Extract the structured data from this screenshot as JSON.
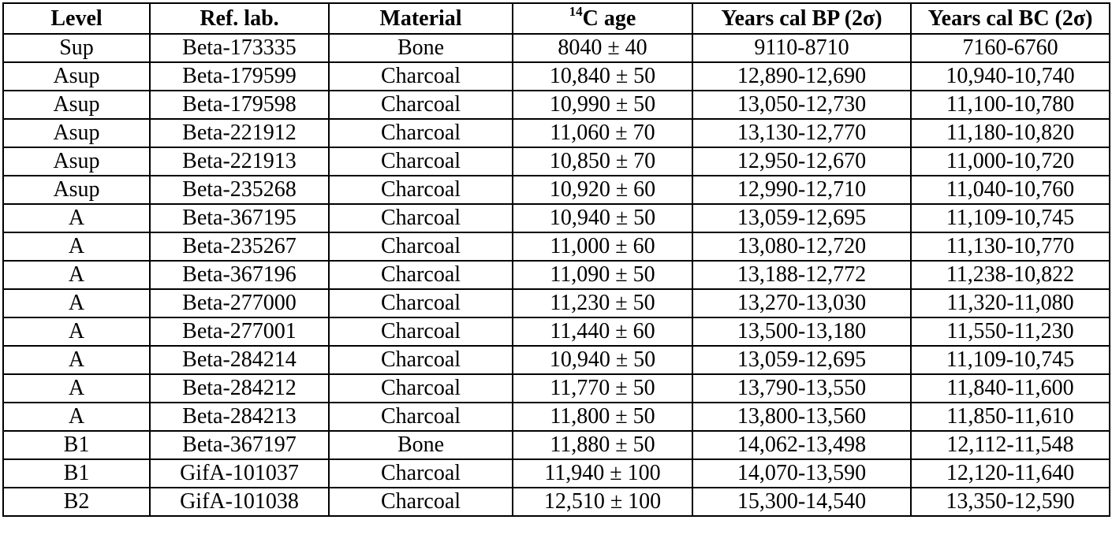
{
  "table": {
    "headers": {
      "level": "Level",
      "ref_lab": "Ref. lab.",
      "material": "Material",
      "age_sup": "14",
      "age_main": "C age",
      "cal_bp": "Years cal BP (2σ)",
      "cal_bc": "Years cal BC (2σ)"
    },
    "rows": [
      [
        "Sup",
        "Beta-173335",
        "Bone",
        "8040 ± 40",
        "9110-8710",
        "7160-6760"
      ],
      [
        "Asup",
        "Beta-179599",
        "Charcoal",
        "10,840 ± 50",
        "12,890-12,690",
        "10,940-10,740"
      ],
      [
        "Asup",
        "Beta-179598",
        "Charcoal",
        "10,990 ± 50",
        "13,050-12,730",
        "11,100-10,780"
      ],
      [
        "Asup",
        "Beta-221912",
        "Charcoal",
        "11,060 ± 70",
        "13,130-12,770",
        "11,180-10,820"
      ],
      [
        "Asup",
        "Beta-221913",
        "Charcoal",
        "10,850 ± 70",
        "12,950-12,670",
        "11,000-10,720"
      ],
      [
        "Asup",
        "Beta-235268",
        "Charcoal",
        "10,920 ± 60",
        "12,990-12,710",
        "11,040-10,760"
      ],
      [
        "A",
        "Beta-367195",
        "Charcoal",
        "10,940 ± 50",
        "13,059-12,695",
        "11,109-10,745"
      ],
      [
        "A",
        "Beta-235267",
        "Charcoal",
        "11,000 ± 60",
        "13,080-12,720",
        "11,130-10,770"
      ],
      [
        "A",
        "Beta-367196",
        "Charcoal",
        "11,090 ± 50",
        "13,188-12,772",
        "11,238-10,822"
      ],
      [
        "A",
        "Beta-277000",
        "Charcoal",
        "11,230 ± 50",
        "13,270-13,030",
        "11,320-11,080"
      ],
      [
        "A",
        "Beta-277001",
        "Charcoal",
        "11,440 ± 60",
        "13,500-13,180",
        "11,550-11,230"
      ],
      [
        "A",
        "Beta-284214",
        "Charcoal",
        "10,940 ± 50",
        "13,059-12,695",
        "11,109-10,745"
      ],
      [
        "A",
        "Beta-284212",
        "Charcoal",
        "11,770 ± 50",
        "13,790-13,550",
        "11,840-11,600"
      ],
      [
        "A",
        "Beta-284213",
        "Charcoal",
        "11,800 ± 50",
        "13,800-13,560",
        "11,850-11,610"
      ],
      [
        "B1",
        "Beta-367197",
        "Bone",
        "11,880 ± 50",
        "14,062-13,498",
        "12,112-11,548"
      ],
      [
        "B1",
        "GifA-101037",
        "Charcoal",
        "11,940 ± 100",
        "14,070-13,590",
        "12,120-11,640"
      ],
      [
        "B2",
        "GifA-101038",
        "Charcoal",
        "12,510 ± 100",
        "15,300-14,540",
        "13,350-12,590"
      ]
    ]
  }
}
